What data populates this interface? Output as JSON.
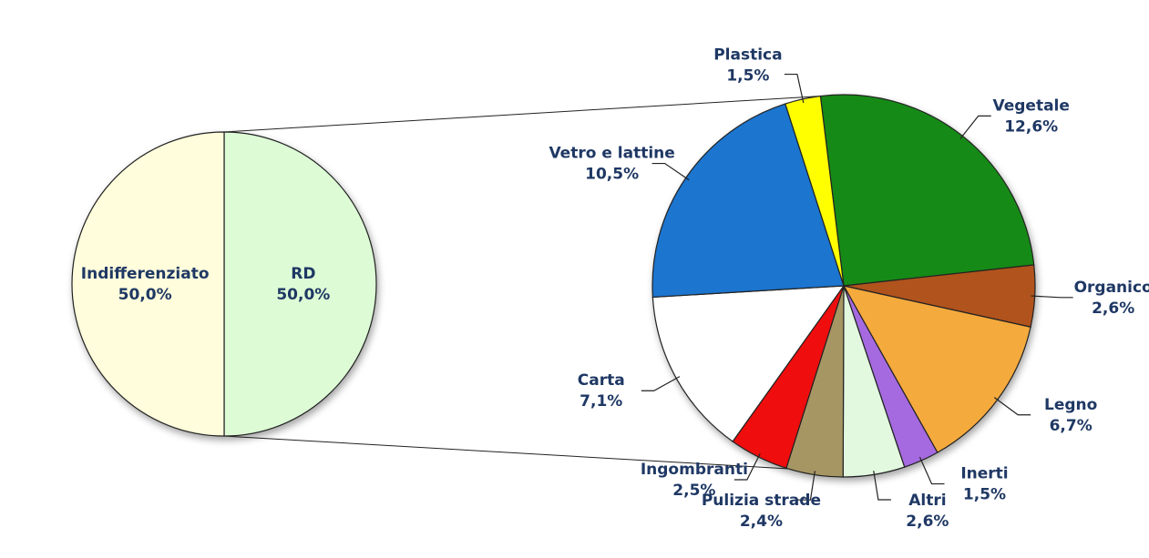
{
  "chart_data": [
    {
      "type": "pie",
      "categories": [
        "RD",
        "Indifferenziato"
      ],
      "values": [
        50.0,
        50.0
      ],
      "value_labels": [
        "50,0%",
        "50,0%"
      ],
      "colors": [
        "#ddfcd6",
        "#fffddc"
      ]
    },
    {
      "type": "pie",
      "categories": [
        "Vegetale",
        "Organico",
        "Legno",
        "Inerti",
        "Altri",
        "Pulizia strade",
        "Ingombranti",
        "Carta",
        "Vetro e lattine",
        "Plastica"
      ],
      "values": [
        12.6,
        2.6,
        6.7,
        1.5,
        2.6,
        2.4,
        2.5,
        7.1,
        10.5,
        1.5
      ],
      "value_labels": [
        "12,6%",
        "2,6%",
        "6,7%",
        "1,5%",
        "2,6%",
        "2,4%",
        "2,5%",
        "7,1%",
        "10,5%",
        "1,5%"
      ],
      "colors": [
        "#168a16",
        "#b0521e",
        "#f5aa3e",
        "#a56ae0",
        "#e2f9df",
        "#a69664",
        "#f01010",
        "#ffffff",
        "#1a74cf",
        "#ffff00"
      ]
    }
  ]
}
